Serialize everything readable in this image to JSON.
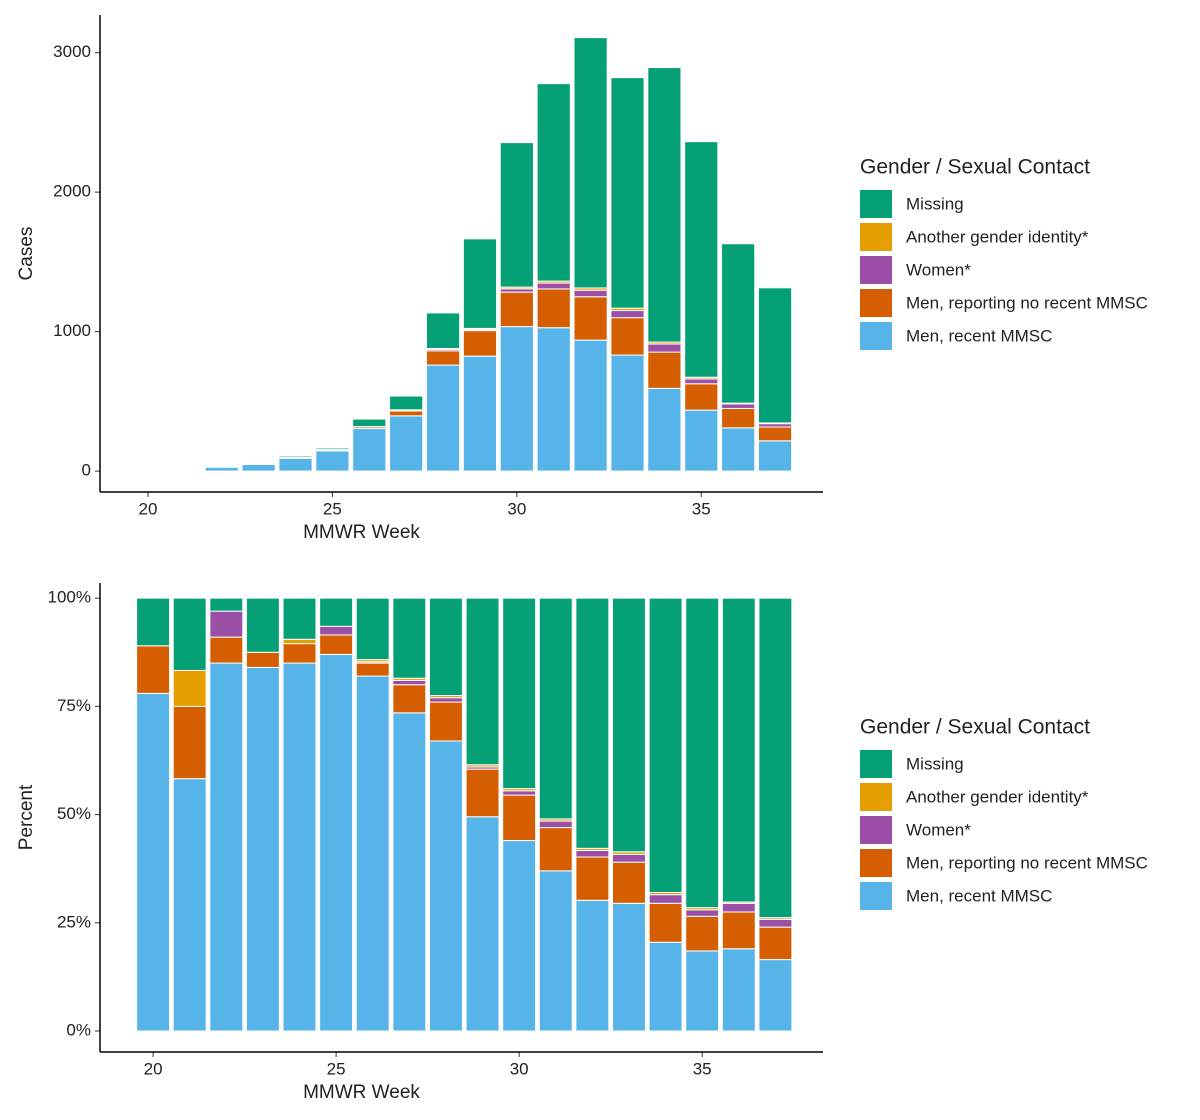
{
  "chart_data": [
    {
      "type": "stacked_bar",
      "x_label": "MMWR Week",
      "y_label": "Cases",
      "legend_title": "Gender / Sexual Contact",
      "x": [
        20,
        21,
        22,
        23,
        24,
        25,
        26,
        27,
        28,
        29,
        30,
        31,
        32,
        33,
        34,
        35,
        36,
        37
      ],
      "xlim": [
        18.7,
        38.3
      ],
      "xticks": [
        20,
        25,
        30,
        35
      ],
      "ylim": [
        -150,
        3270
      ],
      "yticks": [
        0,
        1000,
        2000,
        3000
      ],
      "series": [
        {
          "name": "Missing",
          "color": "#06a077",
          "values": [
            1,
            2,
            1,
            7,
            10,
            11,
            54,
            99,
            255,
            642,
            1036,
            1416,
            1795,
            1653,
            1968,
            1689,
            1143,
            969
          ]
        },
        {
          "name": "Another gender identity*",
          "color": "#e69f00",
          "values": [
            0,
            1,
            0,
            0,
            1,
            0,
            2,
            3,
            6,
            8,
            12,
            14,
            16,
            17,
            14,
            12,
            5,
            5
          ]
        },
        {
          "name": "Women*",
          "color": "#9b4fa6",
          "values": [
            0,
            0,
            2,
            0,
            0,
            3,
            1,
            5,
            11,
            8,
            24,
            42,
            47,
            51,
            58,
            35,
            33,
            24
          ]
        },
        {
          "name": "Men, reporting no recent MMSC",
          "color": "#d55e00",
          "values": [
            1,
            2,
            2,
            2,
            5,
            7,
            11,
            35,
            102,
            183,
            247,
            278,
            311,
            268,
            260,
            189,
            139,
            99
          ]
        },
        {
          "name": "Men, recent MMSC",
          "color": "#56b4e9",
          "values": [
            7,
            7,
            28,
            48,
            92,
            144,
            305,
            396,
            760,
            824,
            1036,
            1028,
            939,
            832,
            593,
            437,
            310,
            217
          ]
        }
      ]
    },
    {
      "type": "stacked_bar",
      "x_label": "MMWR Week",
      "y_label": "Percent",
      "legend_title": "Gender / Sexual Contact",
      "x": [
        20,
        21,
        22,
        23,
        24,
        25,
        26,
        27,
        28,
        29,
        30,
        31,
        32,
        33,
        34,
        35,
        36,
        37
      ],
      "xlim": [
        18.55,
        38.3
      ],
      "xticks": [
        20,
        25,
        30,
        35
      ],
      "ylim": [
        -4.85,
        103.5
      ],
      "yticks": [
        {
          "value": 0,
          "label": "0%"
        },
        {
          "value": 25,
          "label": "25%"
        },
        {
          "value": 50,
          "label": "50%"
        },
        {
          "value": 75,
          "label": "75%"
        },
        {
          "value": 100,
          "label": "100%"
        }
      ],
      "series": [
        {
          "name": "Missing",
          "color": "#06a077",
          "values": [
            11,
            16.7,
            3,
            12.5,
            9.5,
            6.5,
            14.2,
            18.5,
            22.5,
            38.5,
            44,
            51,
            57.8,
            58.6,
            68,
            71.5,
            70.2,
            73.8
          ]
        },
        {
          "name": "Another gender identity*",
          "color": "#e69f00",
          "values": [
            0,
            8.3,
            0,
            0,
            1,
            0,
            0.5,
            0.5,
            0.5,
            0.5,
            0.5,
            0.5,
            0.5,
            0.6,
            0.5,
            0.5,
            0.3,
            0.4
          ]
        },
        {
          "name": "Women*",
          "color": "#9b4fa6",
          "values": [
            0,
            0,
            6,
            0,
            0,
            2,
            0.3,
            1,
            1,
            0.5,
            1,
            1.5,
            1.5,
            1.8,
            2,
            1.5,
            2,
            1.8
          ]
        },
        {
          "name": "Men, reporting no recent MMSC",
          "color": "#d55e00",
          "values": [
            11,
            16.7,
            6,
            3.5,
            4.5,
            4.5,
            3,
            6.5,
            9,
            11,
            10.5,
            10,
            10,
            9.5,
            9,
            8,
            8.5,
            7.5
          ]
        },
        {
          "name": "Men, recent MMSC",
          "color": "#56b4e9",
          "values": [
            78,
            58.3,
            85,
            84,
            85,
            87,
            82,
            73.5,
            67,
            49.5,
            44,
            37,
            30.2,
            29.5,
            20.5,
            18.5,
            19,
            16.5
          ]
        }
      ]
    }
  ]
}
